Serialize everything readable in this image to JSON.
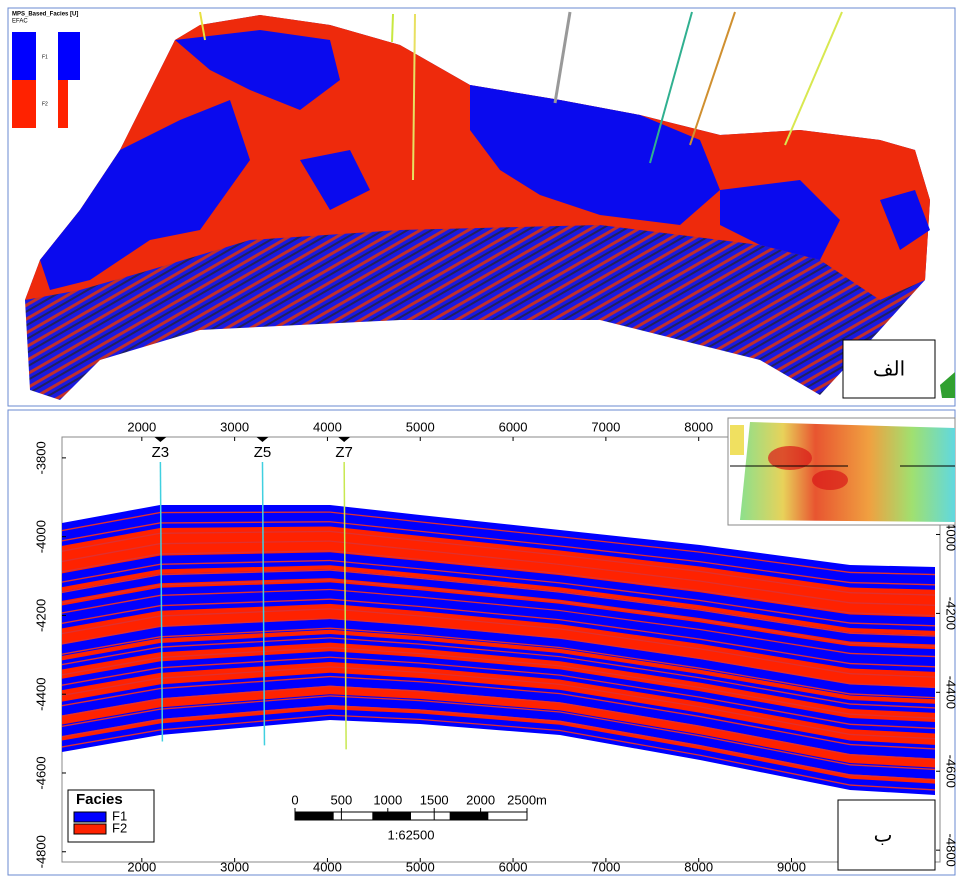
{
  "panel_a": {
    "label": "الف",
    "legend": {
      "title": "MPS_Based_Facies [U]",
      "subtitle": "EFAC",
      "items": [
        "F1",
        "F2"
      ]
    }
  },
  "panel_b": {
    "label": "ب",
    "x_axis": {
      "lim": [
        1140,
        10600
      ],
      "ticks": [
        2000,
        3000,
        4000,
        5000,
        6000,
        7000,
        8000,
        9000
      ]
    },
    "y_axis": {
      "lim": [
        -3747,
        -4826
      ],
      "ticks": [
        -3800,
        -4000,
        -4200,
        -4400,
        -4600,
        -4800
      ]
    },
    "y2_axis": {
      "lim": [
        -3753,
        -4830
      ],
      "ticks": [
        -4000,
        -4200,
        -4400,
        -4600,
        -4800
      ]
    },
    "wells": [
      {
        "name": "Z3",
        "x": 2200,
        "bottom": -4520
      },
      {
        "name": "Z5",
        "x": 3300,
        "bottom": -4530
      },
      {
        "name": "Z7",
        "x": 4180,
        "bottom": -4540
      }
    ],
    "legend": {
      "title": "Facies",
      "items": [
        {
          "name": "F1",
          "color": "#0000ff"
        },
        {
          "name": "F2",
          "color": "#ff2200"
        }
      ]
    },
    "scale_bar": {
      "lim": [
        0,
        2500
      ],
      "ticks": [
        0,
        500,
        1000,
        1500,
        2000,
        {
          "value": 2500,
          "label": "2500m"
        }
      ],
      "ratio": "1:62500"
    }
  }
}
